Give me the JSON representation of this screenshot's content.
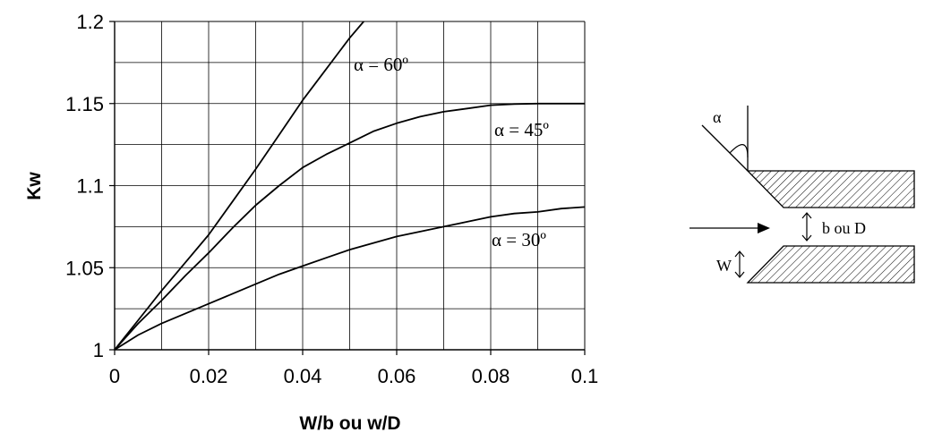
{
  "chart_data": {
    "type": "line",
    "xlabel": "W/b ou w/D",
    "ylabel": "Kw",
    "xlim": [
      0,
      0.1
    ],
    "ylim": [
      1,
      1.2
    ],
    "x_ticks": [
      "0",
      "0.02",
      "0.04",
      "0.06",
      "0.08",
      "0.1"
    ],
    "y_ticks": [
      "1",
      "1.05",
      "1.1",
      "1.15",
      "1.2"
    ],
    "grid": true,
    "series": [
      {
        "name": "α = 60º",
        "x": [
          0,
          0.005,
          0.01,
          0.015,
          0.02,
          0.025,
          0.03,
          0.035,
          0.04,
          0.045,
          0.05,
          0.053
        ],
        "y": [
          1,
          1.018,
          1.036,
          1.053,
          1.07,
          1.09,
          1.11,
          1.131,
          1.152,
          1.171,
          1.19,
          1.2
        ]
      },
      {
        "name": "α = 45º",
        "x": [
          0,
          0.005,
          0.01,
          0.015,
          0.02,
          0.025,
          0.03,
          0.035,
          0.04,
          0.045,
          0.05,
          0.055,
          0.06,
          0.065,
          0.07,
          0.075,
          0.08,
          0.085,
          0.09,
          0.095,
          0.1
        ],
        "y": [
          1,
          1.016,
          1.03,
          1.045,
          1.059,
          1.074,
          1.088,
          1.1,
          1.111,
          1.119,
          1.126,
          1.133,
          1.138,
          1.142,
          1.145,
          1.147,
          1.149,
          1.1497,
          1.15,
          1.15,
          1.15
        ]
      },
      {
        "name": "α = 30º",
        "x": [
          0,
          0.005,
          0.01,
          0.015,
          0.02,
          0.025,
          0.03,
          0.035,
          0.04,
          0.045,
          0.05,
          0.055,
          0.06,
          0.065,
          0.07,
          0.075,
          0.08,
          0.085,
          0.09,
          0.095,
          0.1
        ],
        "y": [
          1,
          1.009,
          1.016,
          1.022,
          1.028,
          1.034,
          1.04,
          1.046,
          1.051,
          1.056,
          1.061,
          1.065,
          1.069,
          1.072,
          1.075,
          1.078,
          1.081,
          1.083,
          1.084,
          1.086,
          1.087
        ]
      }
    ]
  },
  "diagram": {
    "angle_label": "α",
    "gap_label": "b  ou D",
    "w_label": "W"
  }
}
